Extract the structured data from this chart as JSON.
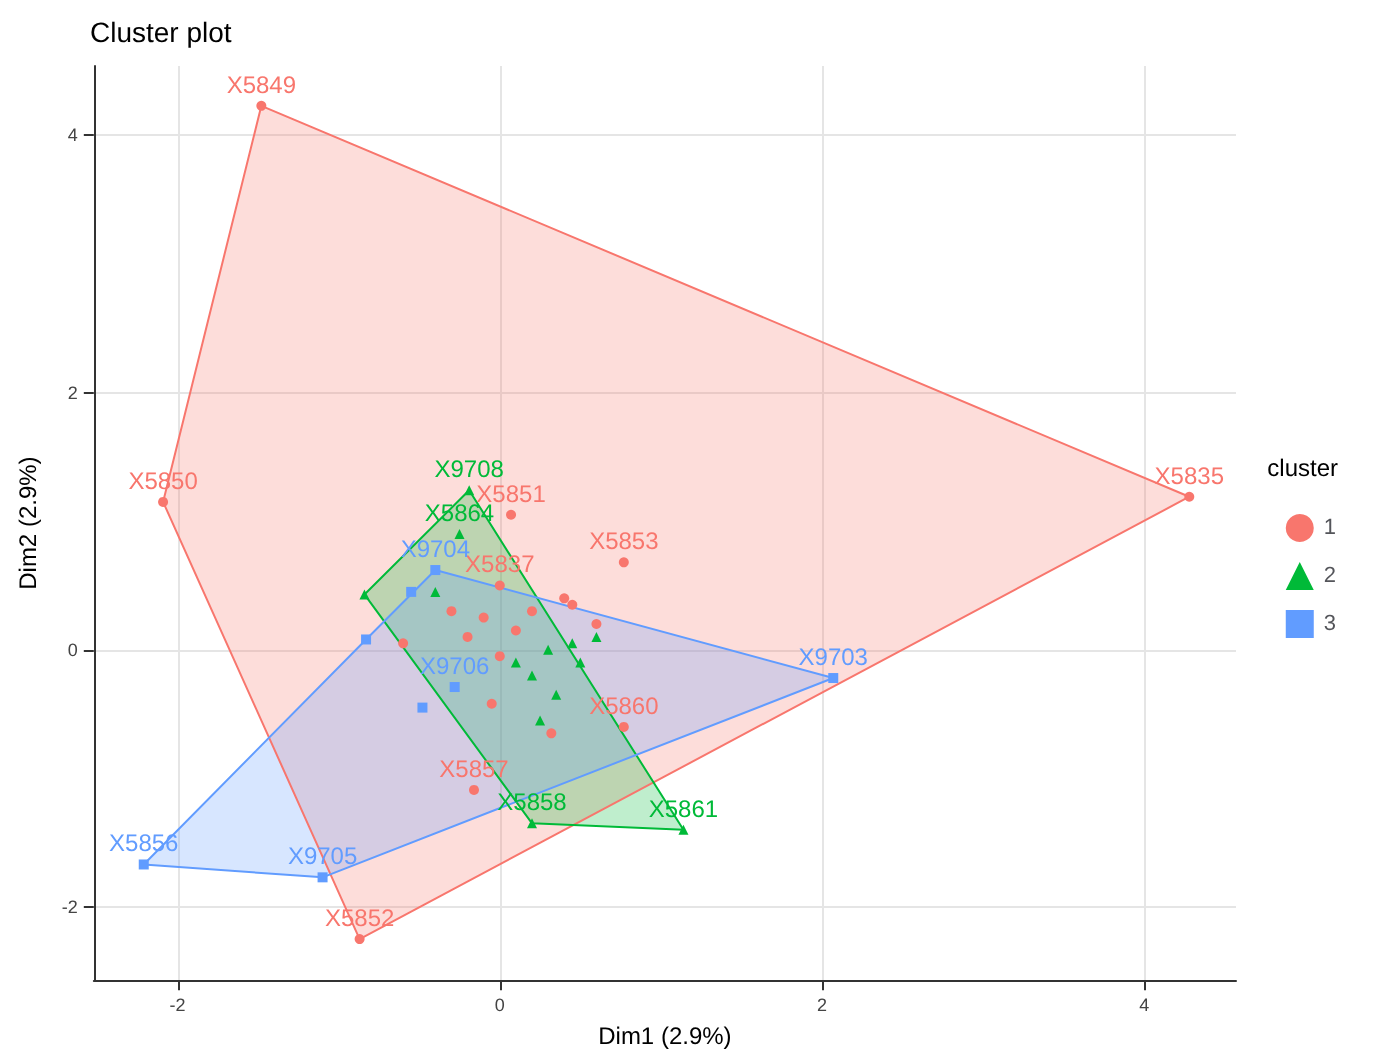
{
  "chart_data": {
    "type": "scatter",
    "title": "Cluster plot",
    "xlabel": "Dim1 (2.9%)",
    "ylabel": "Dim2 (2.9%)",
    "legend_title": "cluster",
    "legend": "right",
    "grid": true,
    "xlim": [
      -2.52,
      4.57
    ],
    "xticks": [
      -2,
      0,
      2,
      4
    ],
    "ylim": [
      -2.57,
      4.54
    ],
    "yticks": [
      -2,
      0,
      2,
      4
    ],
    "series": [
      {
        "type": "area",
        "color": "#f8766d",
        "x": [
          -1.48,
          4.28,
          -0.87,
          -2.09,
          -1.48
        ],
        "values": [
          4.23,
          1.19,
          -2.25,
          1.15,
          4.23
        ]
      },
      {
        "type": "area",
        "color": "#00ba38",
        "x": [
          -0.19,
          1.14,
          0.2,
          -0.84,
          -0.19
        ],
        "values": [
          1.24,
          -1.4,
          -1.35,
          0.43,
          1.24
        ]
      },
      {
        "type": "area",
        "color": "#619cff",
        "x": [
          -0.4,
          2.07,
          -1.1,
          -2.21,
          -0.83,
          -0.4
        ],
        "values": [
          0.62,
          -0.22,
          -1.77,
          -1.67,
          0.08,
          0.62
        ]
      },
      {
        "name": "1",
        "color": "#f8766d",
        "marker": "circle",
        "x": [
          -1.48,
          -2.09,
          4.28,
          -0.87,
          0.07,
          0.77,
          -0.16,
          0.77,
          0.0,
          -0.6,
          -0.3,
          -0.1,
          0.1,
          0.2,
          0.4,
          0.45,
          -0.2,
          0.0,
          -0.05,
          0.32,
          0.6
        ],
        "values": [
          4.23,
          1.15,
          1.19,
          -2.25,
          1.05,
          0.68,
          -1.09,
          -0.6,
          0.5,
          0.05,
          0.3,
          0.25,
          0.15,
          0.3,
          0.4,
          0.35,
          0.1,
          -0.05,
          -0.42,
          -0.65,
          0.2
        ],
        "value_labels": [
          "X5849",
          "X5850",
          "X5835",
          "X5852",
          "X5851",
          "X5853",
          "X5857",
          "X5860",
          "X5837",
          null,
          null,
          null,
          null,
          null,
          null,
          null,
          null,
          null,
          null,
          null,
          null
        ]
      },
      {
        "name": "2",
        "color": "#00ba38",
        "marker": "triangle",
        "x": [
          -0.19,
          1.14,
          0.2,
          -0.25,
          -0.84,
          -0.4,
          0.1,
          0.3,
          0.45,
          0.5,
          0.35,
          0.25,
          0.6,
          0.2
        ],
        "values": [
          1.24,
          -1.4,
          -1.35,
          0.9,
          0.43,
          0.45,
          -0.1,
          0.0,
          0.05,
          -0.1,
          -0.35,
          -0.55,
          0.1,
          -0.2
        ],
        "value_labels": [
          "X9708",
          "X5861",
          "X5858",
          "X5864",
          null,
          null,
          null,
          null,
          null,
          null,
          null,
          null,
          null,
          null
        ]
      },
      {
        "name": "3",
        "color": "#619cff",
        "marker": "square",
        "x": [
          -2.21,
          -1.1,
          2.07,
          -0.4,
          -0.28,
          -0.83,
          -0.55,
          -0.48
        ],
        "values": [
          -1.67,
          -1.77,
          -0.22,
          0.62,
          -0.29,
          0.08,
          0.45,
          -0.45
        ],
        "value_labels": [
          "X5856",
          "X9705",
          "X9703",
          "X9704",
          "X9706",
          null,
          null,
          null
        ]
      }
    ]
  }
}
